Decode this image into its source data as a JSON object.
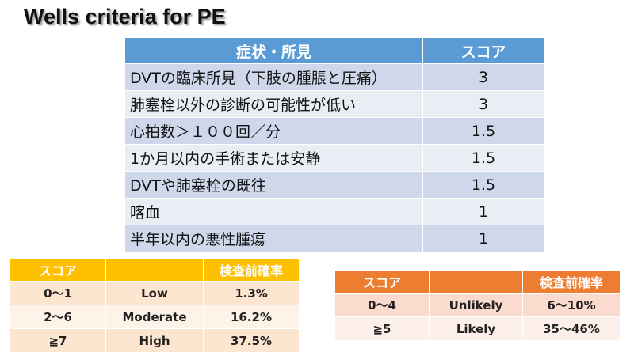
{
  "title": "Wells criteria for PE",
  "main": {
    "headers": [
      "症状・所見",
      "スコア"
    ],
    "rows": [
      [
        "DVTの臨床所見（下肢の腫脹と圧痛）",
        "3"
      ],
      [
        "肺塞栓以外の診断の可能性が低い",
        "3"
      ],
      [
        "心拍数＞１００回／分",
        "1.5"
      ],
      [
        "1か月以内の手術または安静",
        "1.5"
      ],
      [
        "DVTや肺塞栓の既往",
        "1.5"
      ],
      [
        "喀血",
        "1"
      ],
      [
        "半年以内の悪性腫瘍",
        "1"
      ]
    ]
  },
  "three_level": {
    "headers": [
      "スコア",
      "",
      "検査前確率"
    ],
    "rows": [
      [
        "0～1",
        "Low",
        "1.3%"
      ],
      [
        "2～6",
        "Moderate",
        "16.2%"
      ],
      [
        "≧7",
        "High",
        "37.5%"
      ]
    ]
  },
  "two_level": {
    "headers": [
      "スコア",
      "",
      "検査前確率"
    ],
    "rows": [
      [
        "0～4",
        "Unlikely",
        "6～10%"
      ],
      [
        "≧5",
        "Likely",
        "35～46%"
      ]
    ]
  }
}
